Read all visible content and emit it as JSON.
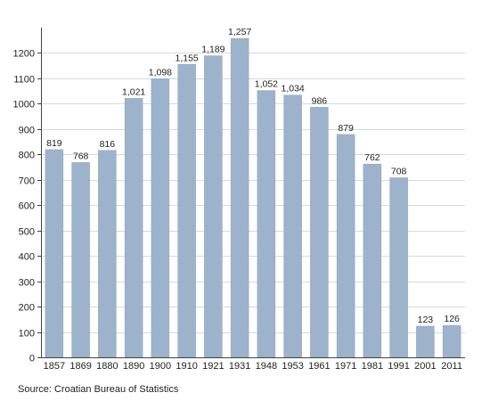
{
  "chart_data": {
    "type": "bar",
    "title": "",
    "xlabel": "",
    "ylabel": "",
    "categories": [
      "1857",
      "1869",
      "1880",
      "1890",
      "1900",
      "1910",
      "1921",
      "1931",
      "1948",
      "1953",
      "1961",
      "1971",
      "1981",
      "1991",
      "2001",
      "2011"
    ],
    "values": [
      819,
      768,
      816,
      1021,
      1098,
      1155,
      1189,
      1257,
      1052,
      1034,
      986,
      879,
      762,
      708,
      123,
      126
    ],
    "data_labels": [
      "819",
      "768",
      "816",
      "1,021",
      "1,098",
      "1,155",
      "1,189",
      "1,257",
      "1,052",
      "1,034",
      "986",
      "879",
      "762",
      "708",
      "123",
      "126"
    ],
    "ylim": [
      0,
      1300
    ],
    "yticks": [
      0,
      100,
      200,
      300,
      400,
      500,
      600,
      700,
      800,
      900,
      1000,
      1100,
      1200
    ],
    "grid": true,
    "bar_color": "#9db3cb",
    "bar_edge_color": "#8ca5bf"
  },
  "source_text": "Source: Croatian Bureau of Statistics"
}
